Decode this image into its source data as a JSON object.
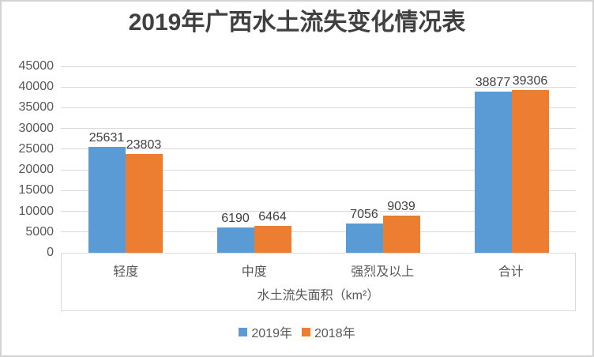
{
  "chart_data": {
    "type": "bar",
    "title": "2019年广西水土流失变化情况表",
    "categories": [
      "轻度",
      "中度",
      "强烈及以上",
      "合计"
    ],
    "series": [
      {
        "name": "2019年",
        "color": "#5b9bd5",
        "values": [
          25631,
          6190,
          7056,
          38877
        ]
      },
      {
        "name": "2018年",
        "color": "#ed7d31",
        "values": [
          23803,
          6464,
          9039,
          39306
        ]
      }
    ],
    "xlabel": "水土流失面积（km²）",
    "ylim": [
      0,
      45000
    ],
    "yticks": [
      0,
      5000,
      10000,
      15000,
      20000,
      25000,
      30000,
      35000,
      40000,
      45000
    ],
    "grid": true,
    "data_labels": true,
    "legend_position": "bottom"
  },
  "colors": {
    "series_2019": "#5b9bd5",
    "series_2018": "#ed7d31",
    "gridline": "#d9d9d9",
    "axis_text": "#595959",
    "title_text": "#404040",
    "data_label_text": "#404040",
    "frame_border": "#d3d3d3",
    "background": "#ffffff"
  }
}
